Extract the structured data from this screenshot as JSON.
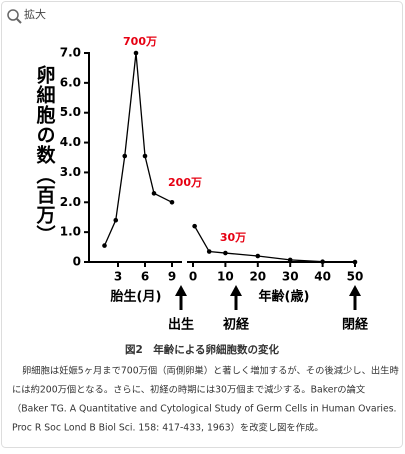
{
  "header": {
    "zoom_label": "拡大"
  },
  "chart_data": [
    {
      "type": "line",
      "y_label": "卵細胞の数（百万）",
      "x_label": "胎生(月)",
      "x": [
        1.5,
        2.75,
        3.75,
        5,
        6,
        7,
        9
      ],
      "values": [
        0.55,
        1.4,
        3.55,
        7.0,
        3.55,
        2.3,
        2.0
      ],
      "xlim": [
        0,
        10
      ],
      "xticks": [
        3,
        6,
        9
      ],
      "ylim": [
        0,
        7
      ],
      "yticks": [
        0,
        {
          "value": 1,
          "label": "1.0"
        },
        {
          "value": 2,
          "label": "2.0"
        },
        {
          "value": 3,
          "label": "3.0"
        },
        {
          "value": 4,
          "label": "4.0"
        },
        {
          "value": 5,
          "label": "5.0"
        },
        {
          "value": 6,
          "label": "6.0"
        },
        {
          "value": 7,
          "label": "7.0"
        }
      ],
      "color": "#000000",
      "annotations": [
        "700万",
        "200万"
      ],
      "annotation_color": "#e60012"
    },
    {
      "type": "line",
      "x_label": "年齢(歳)",
      "x": [
        0.5,
        5,
        10,
        20,
        30,
        40,
        50
      ],
      "values": [
        1.2,
        0.35,
        0.3,
        0.2,
        0.07,
        0.01,
        0
      ],
      "xlim": [
        0,
        50
      ],
      "xticks": [
        0,
        10,
        20,
        30,
        40,
        50
      ],
      "ylim": [
        0,
        7
      ],
      "color": "#000000",
      "annotations": [
        "30万"
      ],
      "annotation_color": "#e60012"
    }
  ],
  "markers": [
    "出生",
    "初経",
    "閉経"
  ],
  "caption": "図2　年齢による卵細胞数の変化",
  "body": [
    "卵細胞は妊娠5ヶ月まで700万個（両側卵巣）と著しく増加するが、その後減少し、出生時",
    "には約200万個となる。さらに、初経の時期には30万個まで減少する。Bakerの論文",
    "（Baker TG. A Quantitative and Cytological Study of Germ Cells in Human Ovaries.",
    "Proc R Soc Lond B Biol Sci. 158: 417-433, 1963）を改変し図を作成。"
  ]
}
